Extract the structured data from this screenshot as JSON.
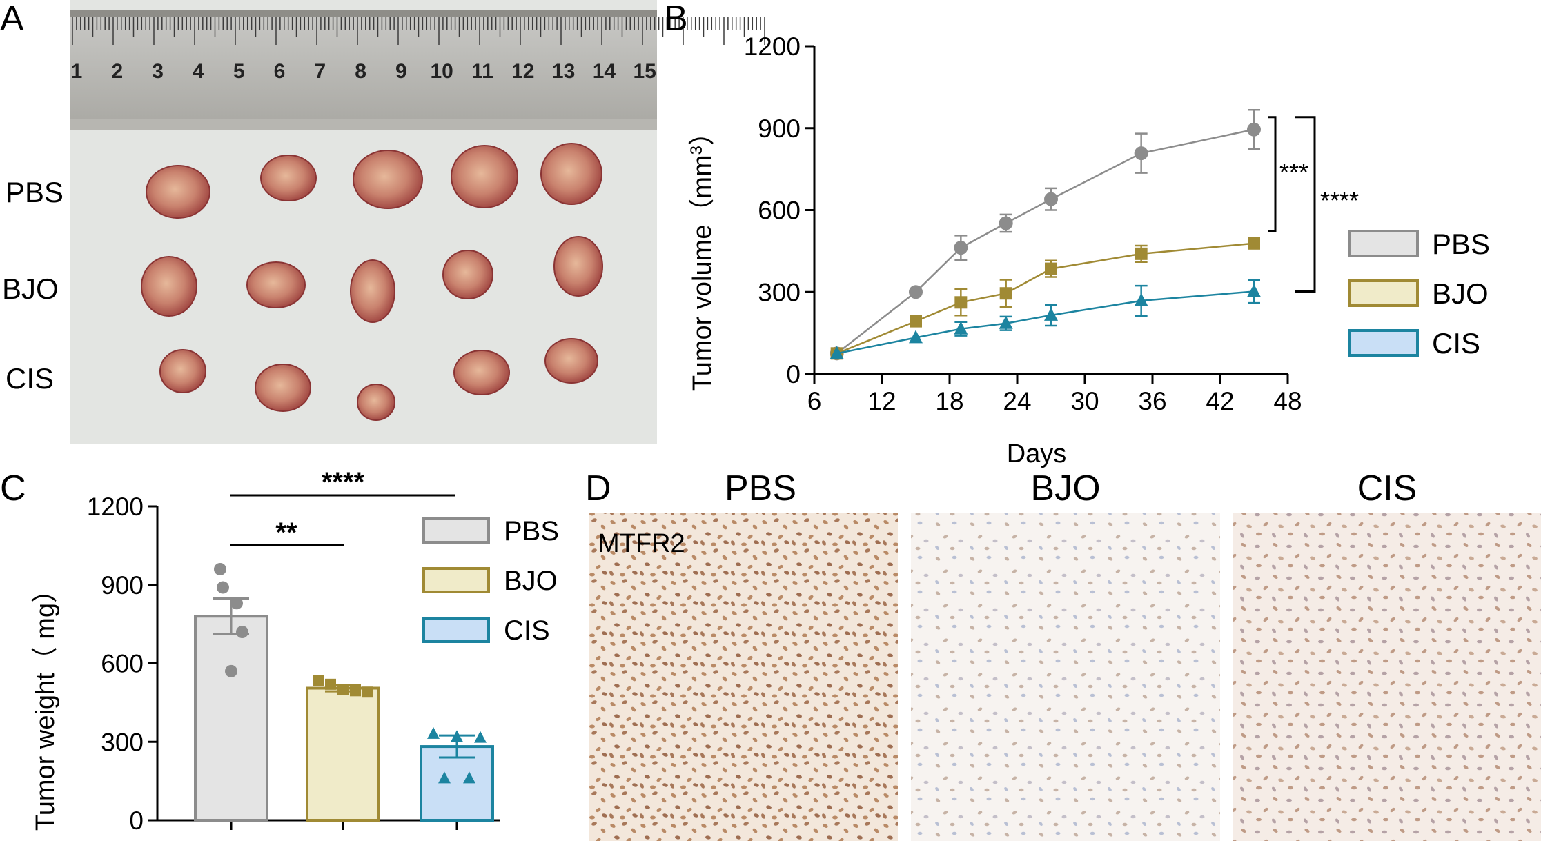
{
  "panels": {
    "a": {
      "letter": "A",
      "ruler_ticks": [
        "1",
        "2",
        "3",
        "4",
        "5",
        "6",
        "7",
        "8",
        "9",
        "10",
        "11",
        "12",
        "13",
        "14",
        "15"
      ],
      "rows": [
        "PBS",
        "BJO",
        "CIS"
      ]
    },
    "b": {
      "letter": "B"
    },
    "c": {
      "letter": "C"
    },
    "d": {
      "letter": "D",
      "titles": [
        "PBS",
        "BJO",
        "CIS"
      ],
      "stain_label": "MTFR2"
    }
  },
  "colors": {
    "PBS": "#8c8c8c",
    "BJO": "#a08a34",
    "CIS": "#1c84a0",
    "PBS_fill": "#e4e4e4",
    "BJO_fill": "#f0ebc9",
    "CIS_fill": "#c9dff6"
  },
  "chart_data": [
    {
      "type": "line",
      "title": "",
      "xlabel": "Days",
      "ylabel": "Tumor volume（mm³）",
      "xlim": [
        6,
        48
      ],
      "ylim": [
        0,
        1200
      ],
      "xticks": [
        6,
        12,
        18,
        24,
        30,
        36,
        42,
        48
      ],
      "yticks": [
        0,
        300,
        600,
        900,
        1200
      ],
      "series": [
        {
          "name": "PBS",
          "marker": "circle",
          "x": [
            8,
            15,
            19,
            23,
            27,
            35,
            45
          ],
          "y": [
            75,
            300,
            462,
            552,
            640,
            808,
            895
          ],
          "err": [
            0,
            0,
            45,
            32,
            40,
            72,
            72
          ]
        },
        {
          "name": "BJO",
          "marker": "square",
          "x": [
            8,
            15,
            19,
            23,
            27,
            35,
            45
          ],
          "y": [
            75,
            193,
            262,
            295,
            385,
            440,
            478
          ],
          "err": [
            0,
            0,
            48,
            50,
            30,
            30,
            0
          ]
        },
        {
          "name": "CIS",
          "marker": "triangle",
          "x": [
            8,
            15,
            19,
            23,
            27,
            35,
            45
          ],
          "y": [
            75,
            133,
            165,
            185,
            215,
            268,
            302
          ],
          "err": [
            0,
            0,
            25,
            25,
            38,
            55,
            42
          ]
        }
      ],
      "legend": [
        "PBS",
        "BJO",
        "CIS"
      ],
      "annotations": [
        {
          "text": "***",
          "between": [
            "PBS",
            "BJO"
          ]
        },
        {
          "text": "****",
          "between": [
            "PBS",
            "CIS"
          ]
        }
      ]
    },
    {
      "type": "bar",
      "title": "",
      "xlabel": "",
      "ylabel": "Tumor weight（ mg）",
      "ylim": [
        0,
        1200
      ],
      "yticks": [
        0,
        300,
        600,
        900,
        1200
      ],
      "categories": [
        "PBS",
        "BJO",
        "CIS"
      ],
      "values": [
        780,
        505,
        282
      ],
      "err": [
        68,
        12,
        42
      ],
      "points": [
        [
          960,
          890,
          830,
          720,
          570
        ],
        [
          535,
          520,
          500,
          495,
          490
        ],
        [
          330,
          318,
          315,
          160,
          160
        ]
      ],
      "legend": [
        "PBS",
        "BJO",
        "CIS"
      ],
      "annotations": [
        {
          "text": "**",
          "between": [
            "PBS",
            "BJO"
          ]
        },
        {
          "text": "****",
          "between": [
            "PBS",
            "CIS"
          ]
        }
      ]
    }
  ]
}
